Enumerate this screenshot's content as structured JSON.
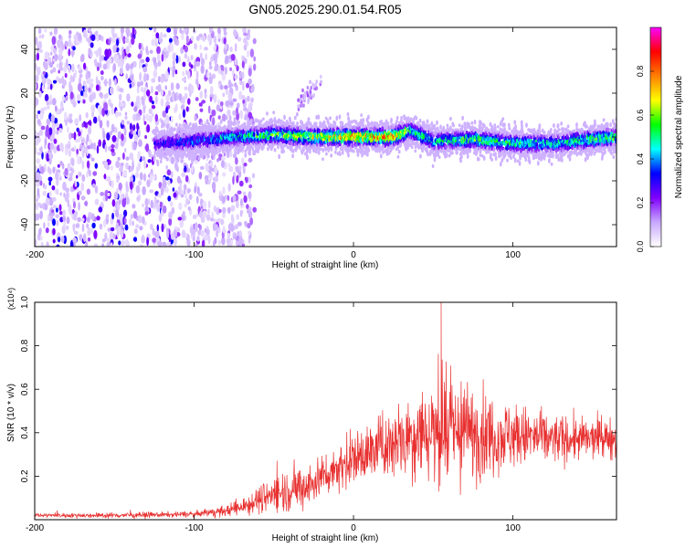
{
  "title": "GN05.2025.290.01.54.R05",
  "colorbar": {
    "label": "Normalized spectral amplitude",
    "ticks": [
      "0.0",
      "0.2",
      "0.4",
      "0.6",
      "0.8"
    ],
    "tick_values": [
      0.0,
      0.2,
      0.4,
      0.6,
      0.8
    ],
    "range": [
      0.0,
      1.0
    ],
    "stops": [
      "#ffffff",
      "#c8a8ff",
      "#8000ff",
      "#0000ff",
      "#00ffff",
      "#00ff00",
      "#ffff00",
      "#ff8000",
      "#ff0000",
      "#ff00ff"
    ]
  },
  "chart_data": [
    {
      "type": "heatmap",
      "title": "GN05.2025.290.01.54.R05",
      "xlabel": "Height of straight line (km)",
      "ylabel": "Frequency (Hz)",
      "xlim": [
        -200,
        165
      ],
      "ylim": [
        -50,
        50
      ],
      "x_ticks": [
        -200,
        -100,
        0,
        100
      ],
      "x_tick_labels": [
        "-200",
        "-100",
        "0",
        "100"
      ],
      "y_ticks": [
        -40,
        -20,
        0,
        20,
        40
      ],
      "y_tick_labels": [
        "-40",
        "-20",
        "0",
        "20",
        "40"
      ],
      "ridge": {
        "x": [
          -125,
          -100,
          -75,
          -50,
          -25,
          0,
          25,
          35,
          50,
          75,
          100,
          125,
          150,
          165
        ],
        "frequency": [
          -3,
          -2,
          0,
          1,
          0,
          0,
          0,
          3,
          -2,
          -1,
          -3,
          -3,
          -1,
          0
        ],
        "peak_amplitude": [
          0.3,
          0.4,
          0.5,
          0.6,
          0.7,
          0.8,
          0.85,
          0.6,
          0.5,
          0.6,
          0.55,
          0.5,
          0.6,
          0.6
        ]
      },
      "noise_region_x": [
        -200,
        -70
      ],
      "faint_feature": {
        "x": [
          -35,
          -20
        ],
        "frequency": [
          15,
          25
        ]
      },
      "colorscale": "rainbow",
      "zlabel": "Normalized spectral amplitude"
    },
    {
      "type": "line",
      "xlabel": "Height of straight line (km)",
      "ylabel": "SNR (10 * v/v)",
      "y_multiplier_label": "(x10⁴)",
      "xlim": [
        -200,
        165
      ],
      "ylim": [
        0,
        1.0
      ],
      "x_ticks": [
        -200,
        -100,
        0,
        100
      ],
      "x_tick_labels": [
        "-200",
        "-100",
        "0",
        "100"
      ],
      "y_ticks": [
        0.2,
        0.4,
        0.6,
        0.8,
        1.0
      ],
      "y_tick_labels": [
        "0.2",
        "0.4",
        "0.6",
        "0.8",
        "1.0"
      ],
      "series": [
        {
          "name": "SNR",
          "color": "#e83030",
          "envelope": {
            "x": [
              -200,
              -150,
              -100,
              -80,
              -70,
              -60,
              -50,
              -40,
              -30,
              -20,
              -10,
              0,
              10,
              20,
              30,
              40,
              50,
              60,
              70,
              80,
              90,
              100,
              110,
              120,
              130,
              140,
              150,
              165
            ],
            "mean": [
              0.02,
              0.02,
              0.025,
              0.04,
              0.06,
              0.09,
              0.12,
              0.14,
              0.15,
              0.2,
              0.24,
              0.28,
              0.31,
              0.34,
              0.38,
              0.4,
              0.41,
              0.41,
              0.4,
              0.4,
              0.39,
              0.39,
              0.38,
              0.37,
              0.37,
              0.37,
              0.37,
              0.38
            ],
            "amplitude": [
              0.01,
              0.015,
              0.015,
              0.03,
              0.05,
              0.07,
              0.1,
              0.12,
              0.12,
              0.12,
              0.12,
              0.14,
              0.16,
              0.18,
              0.22,
              0.25,
              0.28,
              0.28,
              0.27,
              0.25,
              0.2,
              0.18,
              0.16,
              0.14,
              0.13,
              0.12,
              0.11,
              0.11
            ]
          },
          "peak": {
            "x": 55,
            "y": 1.0
          }
        }
      ]
    }
  ]
}
